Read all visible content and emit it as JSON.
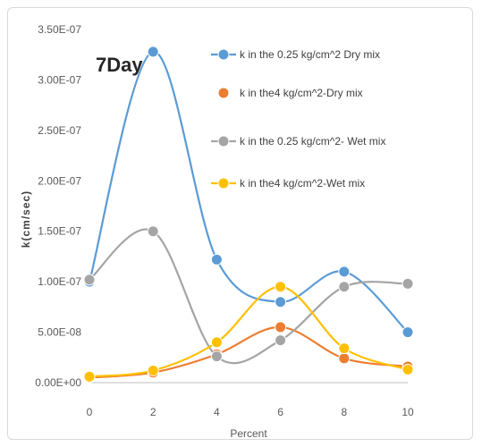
{
  "chart_data": {
    "type": "line",
    "title": "7Day",
    "xlabel": "Percent",
    "ylabel": "k(cm/sec)",
    "x": [
      0,
      2,
      4,
      6,
      8,
      10
    ],
    "xticks": [
      "0",
      "2",
      "4",
      "6",
      "8",
      "10"
    ],
    "yticks": [
      "0.00E+00",
      "5.00E-08",
      "1.00E-07",
      "1.50E-07",
      "2.00E-07",
      "2.50E-07",
      "3.00E-07",
      "3.50E-07"
    ],
    "ylim": [
      0,
      3.5e-07
    ],
    "grid": false,
    "legend_position": "top-right",
    "series": [
      {
        "name": "k in the 0.25 kg/cm^2  Dry mix",
        "color": "#5b9bd5",
        "values": [
          1e-07,
          3.28e-07,
          1.22e-07,
          8e-08,
          1.1e-07,
          5e-08
        ]
      },
      {
        "name": "k in the4 kg/cm^2-Dry mix",
        "color": "#ed7d31",
        "values": [
          5e-09,
          1e-08,
          2.8e-08,
          5.5e-08,
          2.4e-08,
          1.6e-08
        ]
      },
      {
        "name": "k in the 0.25 kg/cm^2- Wet mix",
        "color": "#a5a5a5",
        "values": [
          1.02e-07,
          1.5e-07,
          2.6e-08,
          4.2e-08,
          9.5e-08,
          9.8e-08
        ]
      },
      {
        "name": "k in the4 kg/cm^2-Wet mix",
        "color": "#ffc000",
        "values": [
          6e-09,
          1.2e-08,
          4e-08,
          9.5e-08,
          3.4e-08,
          1.3e-08
        ]
      }
    ]
  }
}
